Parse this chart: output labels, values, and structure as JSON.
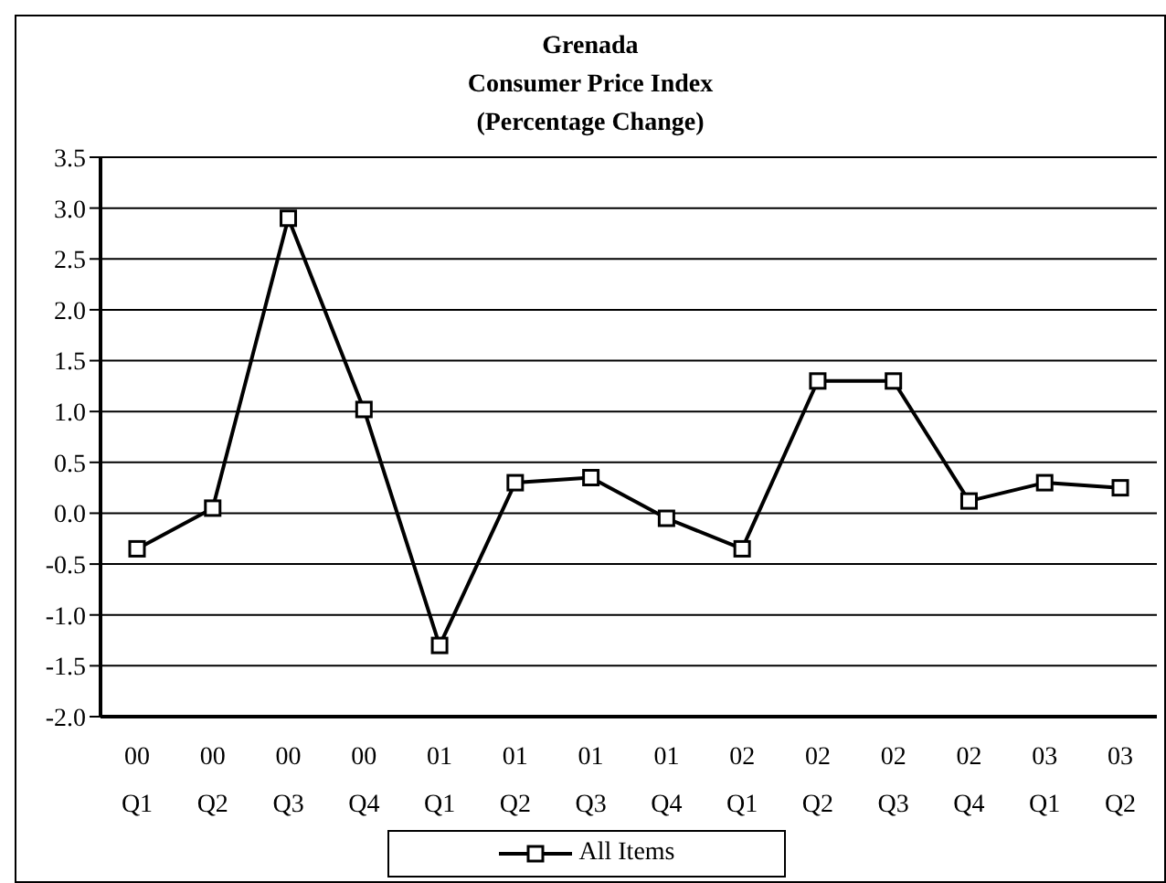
{
  "chart_data": {
    "type": "line",
    "title": "Grenada\nConsumer Price Index\n(Percentage Change)",
    "categories": [
      "00 Q1",
      "00 Q2",
      "00 Q3",
      "00 Q4",
      "01 Q1",
      "01 Q2",
      "01 Q3",
      "01 Q4",
      "02 Q1",
      "02 Q2",
      "02 Q3",
      "02 Q4",
      "03 Q1",
      "03 Q2"
    ],
    "series": [
      {
        "name": "All Items",
        "color": "#000000",
        "values": [
          -0.35,
          0.05,
          2.9,
          1.02,
          -1.3,
          0.3,
          0.35,
          -0.05,
          -0.35,
          1.3,
          1.3,
          0.12,
          0.3,
          0.25
        ]
      }
    ],
    "ylim": [
      -2.0,
      3.5
    ],
    "yticks": [
      {
        "value": -2,
        "label": "-2.0"
      },
      {
        "value": -1.5,
        "label": "-1.5"
      },
      {
        "value": -1,
        "label": "-1.0"
      },
      {
        "value": -0.5,
        "label": "-0.5"
      },
      {
        "value": 0,
        "label": "0.0"
      },
      {
        "value": 0.5,
        "label": "0.5"
      },
      {
        "value": 1,
        "label": "1.0"
      },
      {
        "value": 1.5,
        "label": "1.5"
      },
      {
        "value": 2,
        "label": "2.0"
      },
      {
        "value": 2.5,
        "label": "2.5"
      },
      {
        "value": 3,
        "label": "3.0"
      },
      {
        "value": 3.5,
        "label": "3.5"
      }
    ],
    "grid": "y",
    "legend": "bottom",
    "marker": "square",
    "line_style": "solid"
  }
}
